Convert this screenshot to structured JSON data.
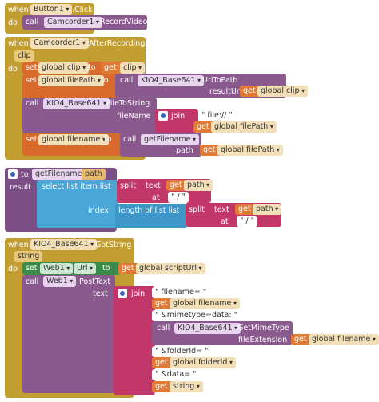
{
  "block1": {
    "event": "when",
    "component": "Button1",
    "event_name": ".Click",
    "do": "do",
    "call": "call",
    "target": "Camcorder1",
    "method": ".RecordVideo"
  },
  "block2": {
    "event": "when",
    "component": "Camcorder1",
    "event_name": ".AfterRecording",
    "param": "clip",
    "do": "do",
    "set": "set",
    "to": "to",
    "get": "get",
    "call": "call",
    "global_clip": "global clip",
    "clip": "clip",
    "global_filePath": "global filePath",
    "kio": "KIO4_Base641",
    "uri_to_path": ".UriToPath",
    "resultUri": "resultUri",
    "file_to_string": ".FileToString",
    "fileName": "fileName",
    "join": "join",
    "file_prefix": "\" file:// \"",
    "global_filename": "global filename",
    "getFilename": "getFilename",
    "path": "path"
  },
  "block3": {
    "to": "to",
    "proc": "getFilename",
    "param": "path",
    "result": "result",
    "select": "select list item  list",
    "split": "split",
    "text": "text",
    "get": "get",
    "path": "path",
    "at": "at",
    "slash": "\" / \"",
    "index": "index",
    "length": "length of list  list"
  },
  "block4": {
    "event": "when",
    "component": "KIO4_Base641",
    "event_name": ".GotString",
    "param": "string",
    "do": "do",
    "set": "set",
    "web": "Web1",
    "url": "Url",
    "to": "to",
    "get": "get",
    "scriptUrl": "global scriptUrl",
    "call": "call",
    "post": ".PostText",
    "text": "text",
    "join": "join",
    "s_filename": "\" filename= \"",
    "global_filename": "global filename",
    "s_mimetype": "\" &mimetype=data: \"",
    "kio": "KIO4_Base641",
    "getmime": ".GetMimeType",
    "fileExtension": "fileExtension",
    "s_folder": "\" &folderId= \"",
    "global_folder": "global folderId",
    "s_data": "\" &data= \"",
    "string": "string"
  }
}
